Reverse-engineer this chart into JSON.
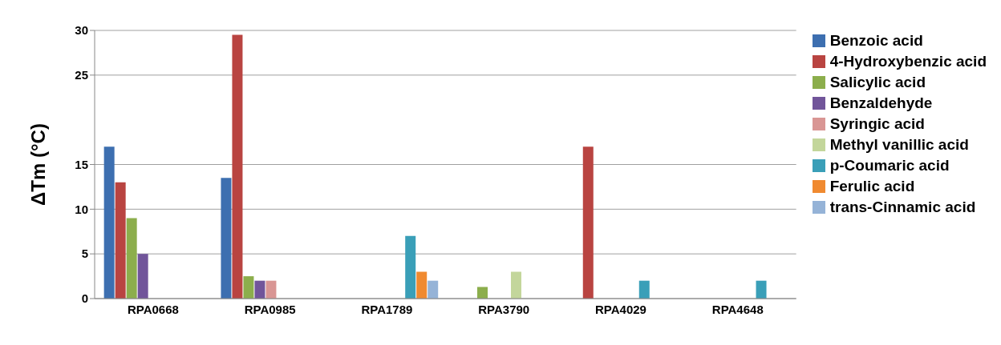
{
  "chart_data": {
    "type": "bar",
    "ylabel": "ΔTm  (°C)",
    "categories": [
      "RPA0668",
      "RPA0985",
      "RPA1789",
      "RPA3790",
      "RPA4029",
      "RPA4648"
    ],
    "series": [
      {
        "name": "Benzoic acid",
        "color": "#3d6fb0",
        "values": [
          17,
          13.5,
          0,
          0,
          0,
          0
        ]
      },
      {
        "name": "4-Hydroxybenzic acid",
        "color": "#b94441",
        "values": [
          13,
          29.5,
          0,
          0,
          17,
          0
        ]
      },
      {
        "name": "Salicylic acid",
        "color": "#8cae4c",
        "values": [
          9,
          2.5,
          0,
          1.3,
          0,
          0
        ]
      },
      {
        "name": "Benzaldehyde",
        "color": "#71559a",
        "values": [
          5,
          2,
          0,
          0,
          0,
          0
        ]
      },
      {
        "name": "Syringic acid",
        "color": "#d99694",
        "values": [
          0,
          2,
          0,
          0,
          0,
          0
        ]
      },
      {
        "name": "Methyl vanillic acid",
        "color": "#c3d69b",
        "values": [
          0,
          0,
          0,
          3,
          0,
          0
        ]
      },
      {
        "name": "p-Coumaric acid",
        "color": "#3a9fb8",
        "values": [
          0,
          0,
          7,
          0,
          2,
          2
        ]
      },
      {
        "name": "Ferulic acid",
        "color": "#f08a30",
        "values": [
          0,
          0,
          3,
          0,
          0,
          0
        ]
      },
      {
        "name": "trans-Cinnamic acid",
        "color": "#95b3d7",
        "values": [
          0,
          0,
          2,
          0,
          0,
          0
        ]
      }
    ],
    "ylim": [
      0,
      30
    ],
    "yticks": [
      0,
      5,
      10,
      15,
      25,
      30
    ],
    "grid": "y",
    "legend": "right"
  }
}
